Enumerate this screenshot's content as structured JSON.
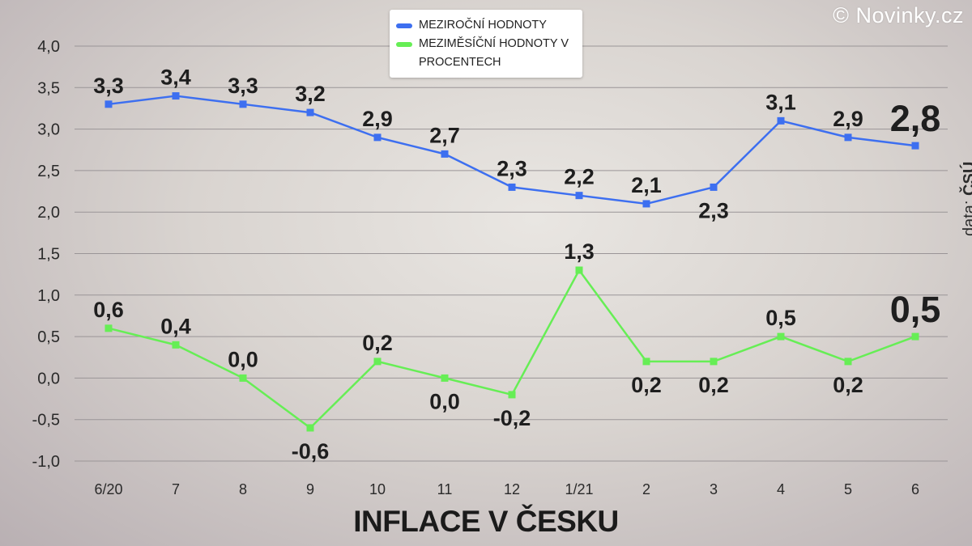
{
  "brand": "© Novinky.cz",
  "source": {
    "prefix": "data: ",
    "name": "ČSÚ"
  },
  "chart_data": {
    "type": "line",
    "title": "INFLACE V ČESKU",
    "categories": [
      "6/20",
      "7",
      "8",
      "9",
      "10",
      "11",
      "12",
      "1/21",
      "2",
      "3",
      "4",
      "5",
      "6"
    ],
    "ylim": [
      -1.0,
      4.0
    ],
    "yticks": [
      "-1,0",
      "-0,5",
      "0,0",
      "0,5",
      "1,0",
      "1,5",
      "2,0",
      "2,5",
      "3,0",
      "3,5",
      "4,0"
    ],
    "grid": true,
    "legend_position": "top-center",
    "series": [
      {
        "name": "MEZIROČNÍ HODNOTY",
        "color": "#3d6ff0",
        "values": [
          3.3,
          3.4,
          3.3,
          3.2,
          2.9,
          2.7,
          2.3,
          2.2,
          2.1,
          2.3,
          3.1,
          2.9,
          2.8
        ],
        "labels": [
          "3,3",
          "3,4",
          "3,3",
          "3,2",
          "2,9",
          "2,7",
          "2,3",
          "2,2",
          "2,1",
          "2,3",
          "3,1",
          "2,9",
          "2,8"
        ]
      },
      {
        "name": "MEZIMĚSÍČNÍ HODNOTY V PROCENTECH",
        "color": "#66ee55",
        "values": [
          0.6,
          0.4,
          0.0,
          -0.6,
          0.2,
          0.0,
          -0.2,
          1.3,
          0.2,
          0.2,
          0.5,
          0.2,
          0.5
        ],
        "labels": [
          "0,6",
          "0,4",
          "0,0",
          "-0,6",
          "0,2",
          "0,0",
          "-0,2",
          "1,3",
          "0,2",
          "0,2",
          "0,5",
          "0,2",
          "0,5"
        ]
      }
    ]
  }
}
